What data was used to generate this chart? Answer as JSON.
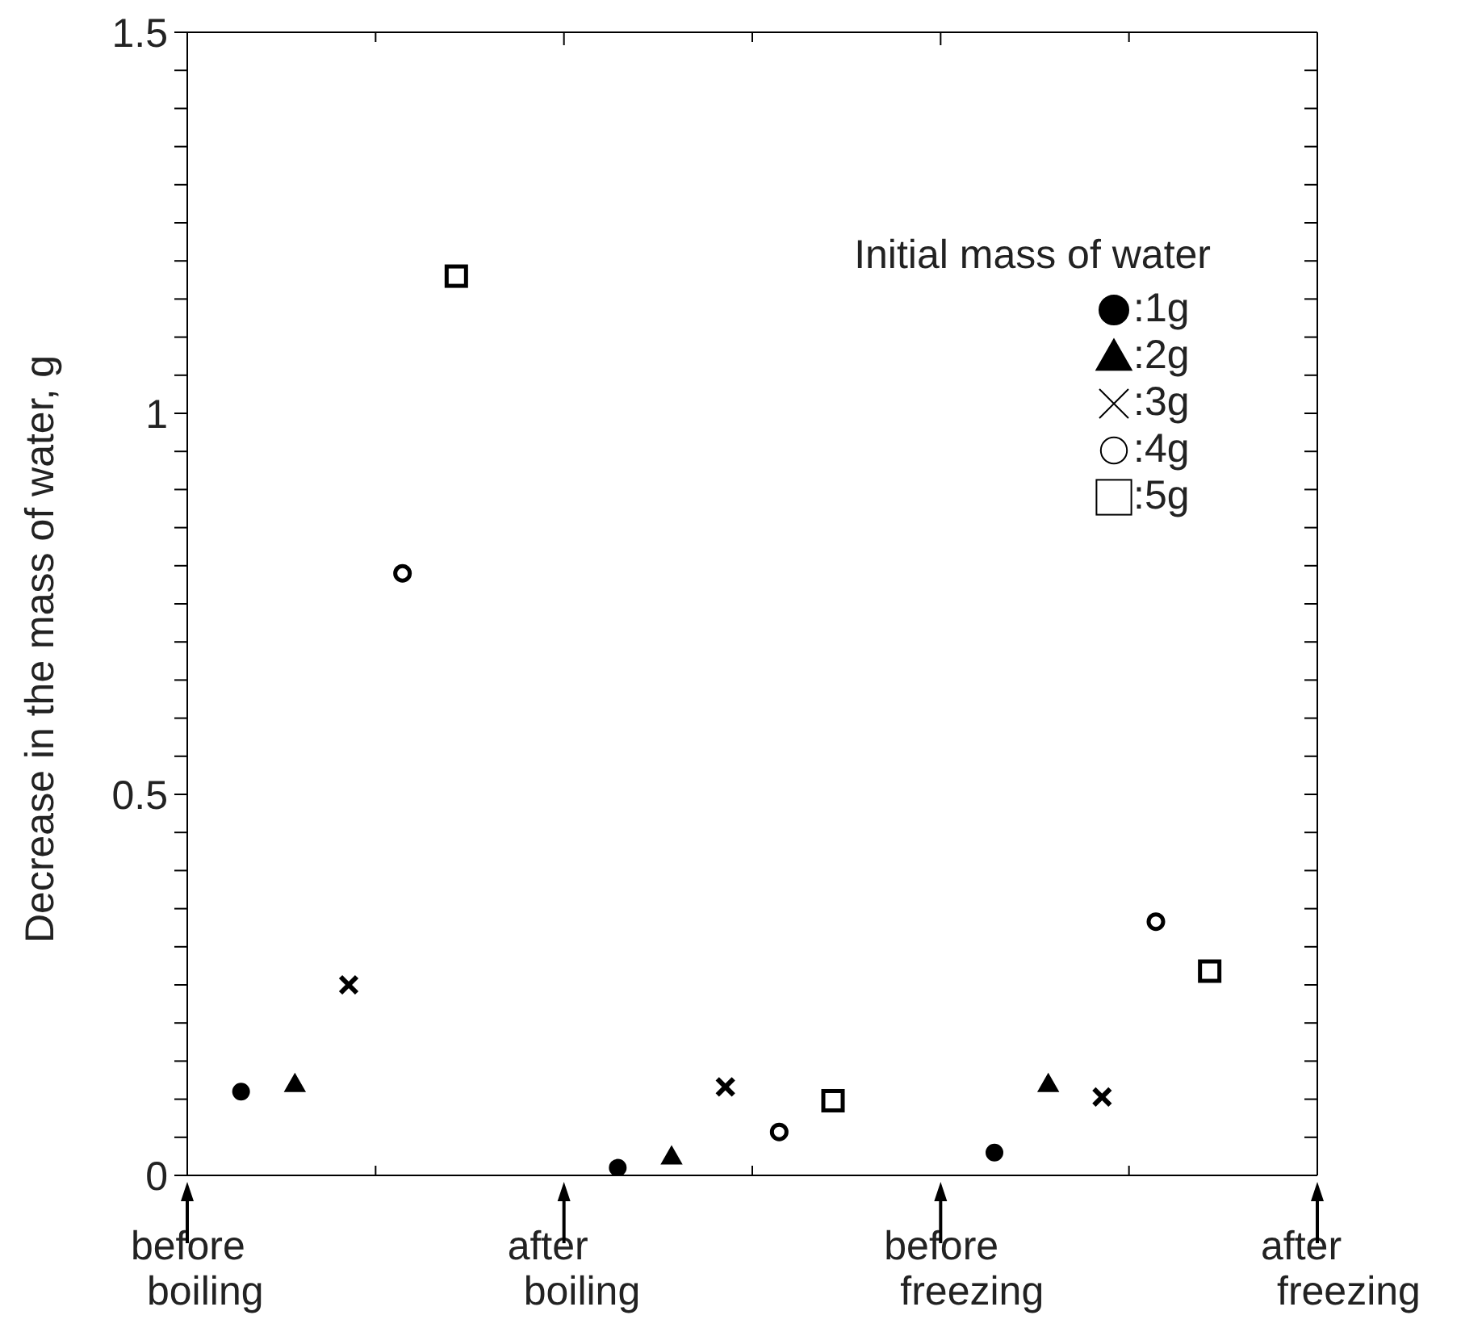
{
  "chart_data": {
    "type": "scatter",
    "ylabel": "Decrease in the mass of water,  g",
    "legend_title": "Initial mass of water",
    "legend": "top right",
    "categories": [
      "before boiling",
      null,
      null,
      null,
      null,
      null,
      null,
      "after boiling",
      null,
      null,
      null,
      null,
      null,
      null,
      "before freezing",
      null,
      null,
      null,
      null,
      null,
      null,
      "after freezing"
    ],
    "ylim": [
      0,
      1.5
    ],
    "yticks": [
      0,
      {
        "value": 0.05,
        "label": null
      },
      {
        "value": 0.1,
        "label": null
      },
      {
        "value": 0.15,
        "label": null
      },
      {
        "value": 0.2,
        "label": null
      },
      {
        "value": 0.25,
        "label": null
      },
      {
        "value": 0.3,
        "label": null
      },
      {
        "value": 0.35,
        "label": null
      },
      {
        "value": 0.4,
        "label": null
      },
      {
        "value": 0.45,
        "label": null
      },
      {
        "value": 0.5,
        "label": "0.5"
      },
      {
        "value": 0.55,
        "label": null
      },
      {
        "value": 0.6,
        "label": null
      },
      {
        "value": 0.65,
        "label": null
      },
      {
        "value": 0.7,
        "label": null
      },
      {
        "value": 0.75,
        "label": null
      },
      {
        "value": 0.8,
        "label": null
      },
      {
        "value": 0.85,
        "label": null
      },
      {
        "value": 0.9,
        "label": null
      },
      {
        "value": 0.95,
        "label": null
      },
      1,
      {
        "value": 1.05,
        "label": null
      },
      {
        "value": 1.1,
        "label": null
      },
      {
        "value": 1.15,
        "label": null
      },
      {
        "value": 1.2,
        "label": null
      },
      {
        "value": 1.25,
        "label": null
      },
      {
        "value": 1.3,
        "label": null
      },
      {
        "value": 1.35,
        "label": null
      },
      {
        "value": 1.4,
        "label": null
      },
      {
        "value": 1.45,
        "label": null
      },
      1.5
    ],
    "series": [
      {
        "name": ":1g",
        "color": "#000000",
        "marker": "circle",
        "values": [
          null,
          0.11,
          null,
          null,
          null,
          null,
          null,
          null,
          0.01,
          null,
          null,
          null,
          null,
          null,
          null,
          0.03,
          null,
          null,
          null,
          null,
          null,
          null
        ]
      },
      {
        "name": ":2g",
        "color": "#000000",
        "marker": "triangle",
        "values": [
          null,
          null,
          0.12,
          null,
          null,
          null,
          null,
          null,
          null,
          0.025,
          null,
          null,
          null,
          null,
          null,
          null,
          0.12,
          null,
          null,
          null,
          null,
          null
        ]
      },
      {
        "name": ":3g",
        "color": "#000000",
        "marker": "cross",
        "values": [
          null,
          null,
          null,
          0.25,
          null,
          null,
          null,
          null,
          null,
          null,
          0.116,
          null,
          null,
          null,
          null,
          null,
          null,
          0.103,
          null,
          null,
          null,
          null
        ]
      },
      {
        "name": ":4g",
        "color": "#000000",
        "marker": "circle",
        "values": [
          null,
          null,
          null,
          null,
          0.79,
          null,
          null,
          null,
          null,
          null,
          null,
          0.057,
          null,
          null,
          null,
          null,
          null,
          null,
          0.333,
          null,
          null,
          null
        ]
      },
      {
        "name": ":5g",
        "color": "#000000",
        "marker": "square",
        "values": [
          null,
          null,
          null,
          null,
          null,
          1.18,
          null,
          null,
          null,
          null,
          null,
          null,
          0.098,
          null,
          null,
          null,
          null,
          null,
          null,
          0.268,
          null,
          null
        ]
      }
    ]
  }
}
